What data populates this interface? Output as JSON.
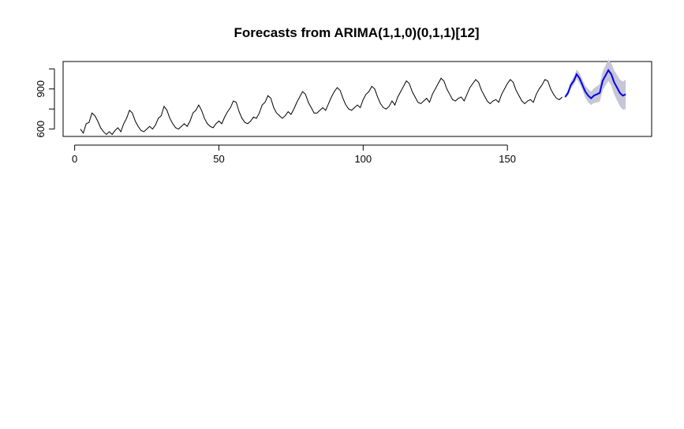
{
  "chart_data": {
    "type": "line",
    "title": "Forecasts from ARIMA(1,1,0)(0,1,1)[12]",
    "xlabel": "",
    "ylabel": "",
    "xlim": [
      -4,
      200
    ],
    "ylim": [
      545,
      1105
    ],
    "x_ticks": [
      0,
      50,
      100,
      150
    ],
    "y_ticks": [
      600,
      900
    ],
    "grid": false,
    "legend": "none",
    "colors": {
      "history": "#000000",
      "forecast": "#0000ee",
      "interval": "#c6c6d6"
    },
    "history": {
      "x_start": 2,
      "values": [
        600,
        570,
        640,
        650,
        720,
        700,
        660,
        610,
        580,
        560,
        580,
        560,
        590,
        610,
        580,
        640,
        680,
        740,
        720,
        660,
        620,
        590,
        580,
        600,
        620,
        600,
        630,
        680,
        700,
        770,
        740,
        680,
        640,
        610,
        600,
        620,
        640,
        620,
        660,
        720,
        740,
        780,
        740,
        680,
        640,
        620,
        610,
        640,
        660,
        640,
        690,
        730,
        760,
        810,
        800,
        730,
        680,
        650,
        640,
        660,
        690,
        680,
        720,
        780,
        800,
        850,
        830,
        760,
        720,
        700,
        680,
        700,
        730,
        710,
        750,
        800,
        840,
        880,
        860,
        800,
        760,
        720,
        720,
        740,
        760,
        740,
        790,
        840,
        880,
        910,
        890,
        830,
        780,
        750,
        740,
        760,
        780,
        760,
        820,
        860,
        880,
        920,
        900,
        840,
        790,
        760,
        750,
        770,
        810,
        780,
        840,
        880,
        920,
        960,
        940,
        880,
        840,
        800,
        790,
        810,
        830,
        800,
        860,
        900,
        940,
        980,
        960,
        900,
        860,
        820,
        810,
        830,
        840,
        810,
        860,
        910,
        940,
        970,
        950,
        890,
        850,
        810,
        790,
        810,
        820,
        800,
        860,
        900,
        940,
        970,
        950,
        890,
        850,
        810,
        790,
        810,
        820,
        800,
        860,
        900,
        930,
        970,
        960,
        900,
        860,
        830,
        820,
        840
      ]
    },
    "forecast": {
      "x_start": 170,
      "values": [
        840,
        870,
        930,
        960,
        1010,
        980,
        930,
        880,
        850,
        830,
        850,
        860,
        870,
        960,
        1000,
        1040,
        1010,
        950,
        910,
        870,
        850,
        860
      ],
      "lower": [
        830,
        850,
        905,
        930,
        975,
        940,
        890,
        835,
        800,
        780,
        795,
        800,
        805,
        890,
        925,
        960,
        925,
        860,
        815,
        770,
        745,
        750
      ],
      "upper": [
        850,
        890,
        955,
        990,
        1045,
        1020,
        970,
        925,
        900,
        880,
        905,
        920,
        935,
        1030,
        1075,
        1120,
        1095,
        1040,
        1005,
        970,
        955,
        970
      ]
    }
  }
}
